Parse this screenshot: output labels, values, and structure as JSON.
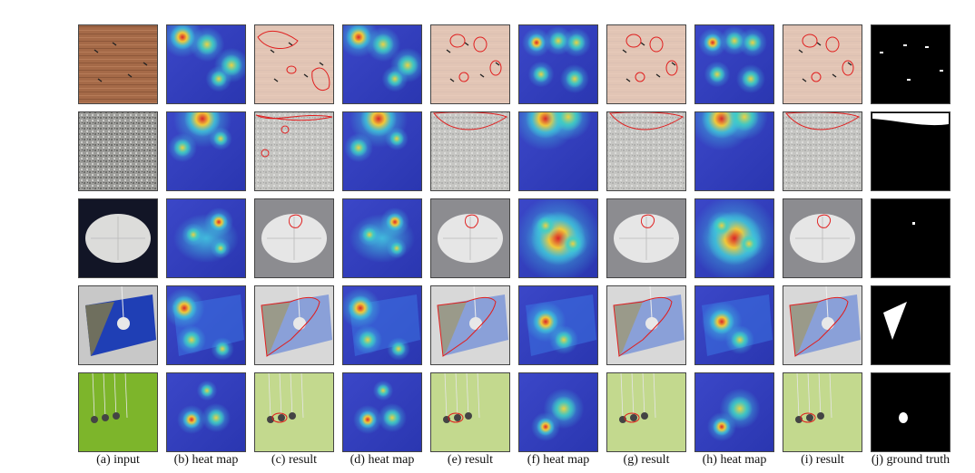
{
  "figure": {
    "columns": [
      {
        "label": "(a) input",
        "kind": "input"
      },
      {
        "label": "(b) heat map",
        "kind": "heat"
      },
      {
        "label": "(c) result",
        "kind": "result"
      },
      {
        "label": "(d) heat map",
        "kind": "heat"
      },
      {
        "label": "(e) result",
        "kind": "result"
      },
      {
        "label": "(f) heat map",
        "kind": "heat"
      },
      {
        "label": "(g) result",
        "kind": "result"
      },
      {
        "label": "(h) heat map",
        "kind": "heat"
      },
      {
        "label": "(i) result",
        "kind": "result"
      },
      {
        "label": "(j) ground truth",
        "kind": "gt"
      }
    ],
    "rows": [
      {
        "name": "wood",
        "base": "#a86a4a"
      },
      {
        "name": "carpet",
        "base": "#9a9a98"
      },
      {
        "name": "pill",
        "base": "#d9d9d6"
      },
      {
        "name": "tile",
        "base": "#2f5ab8"
      },
      {
        "name": "wire",
        "base": "#86b52e"
      }
    ],
    "colors": {
      "heat_low": "#2a36b8",
      "heat_mid": "#2fb0d6",
      "heat_high": "#e8c23a",
      "heat_hot": "#d8262a",
      "contour": "#e01e1e",
      "gt_bg": "#000000",
      "gt_fg": "#ffffff"
    }
  }
}
